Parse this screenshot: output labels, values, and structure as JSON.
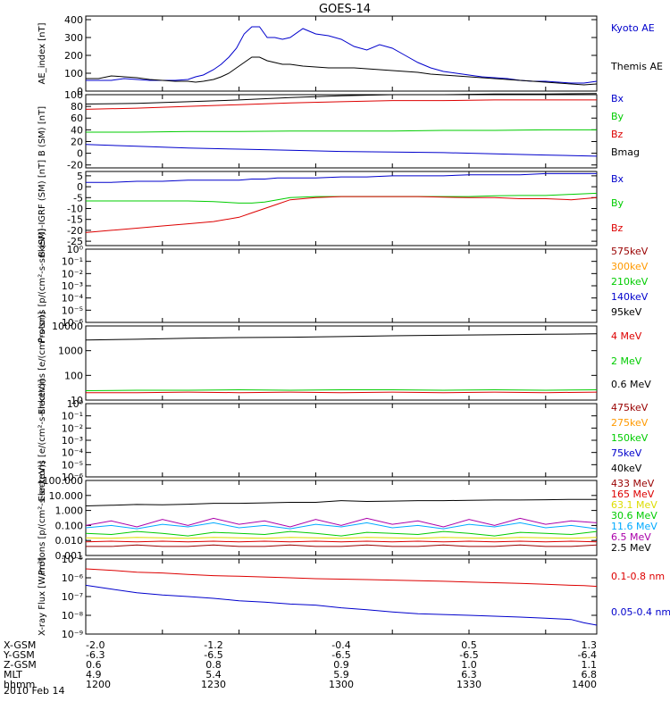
{
  "title": "GOES-14",
  "date_label": "2010 Feb 14",
  "colors": {
    "black": "#000000",
    "blue": "#0000cc",
    "red": "#dd0000",
    "green": "#00cc00",
    "orange": "#ff9900",
    "yellow": "#dddd00",
    "cyan": "#00aaff",
    "darkred": "#990000",
    "purple": "#aa00aa"
  },
  "x_table": {
    "rows": [
      {
        "label": "X-GSM",
        "values": [
          "-2.0",
          "-1.2",
          "-0.4",
          "0.5",
          "1.3"
        ]
      },
      {
        "label": "Y-GSM",
        "values": [
          "-6.3",
          "-6.5",
          "-6.5",
          "-6.5",
          "-6.4"
        ]
      },
      {
        "label": "Z-GSM",
        "values": [
          "0.6",
          "0.8",
          "0.9",
          "1.0",
          "1.1"
        ]
      },
      {
        "label": "MLT",
        "values": [
          "4.9",
          "5.4",
          "5.9",
          "6.3",
          "6.8"
        ]
      },
      {
        "label": "hhmm",
        "values": [
          "1200",
          "1230",
          "1300",
          "1330",
          "1400"
        ]
      }
    ]
  },
  "chart_data": [
    {
      "type": "line",
      "ylabel": "AE_index [nT]",
      "ylim": [
        0,
        420
      ],
      "ticks": [
        "0",
        "100",
        "200",
        "300",
        "400"
      ],
      "tick_vals": [
        0,
        100,
        200,
        300,
        400
      ],
      "log": false,
      "x": [
        1200,
        1205,
        1210,
        1215,
        1220,
        1225,
        1230,
        1235,
        1240,
        1243,
        1246,
        1250,
        1253,
        1256,
        1259,
        1262,
        1265,
        1268,
        1271,
        1274,
        1277,
        1280,
        1285,
        1290,
        1295,
        1300,
        1305,
        1310,
        1315,
        1320,
        1325,
        1330,
        1335,
        1340,
        1345,
        1350,
        1355,
        1360,
        1365,
        1370,
        1375,
        1380,
        1385,
        1390,
        1395,
        1400
      ],
      "series": [
        {
          "name": "Kyoto AE",
          "color": "blue",
          "values": [
            60,
            60,
            60,
            70,
            65,
            60,
            60,
            60,
            65,
            80,
            90,
            120,
            150,
            190,
            240,
            320,
            360,
            360,
            300,
            300,
            290,
            300,
            350,
            320,
            310,
            290,
            250,
            230,
            260,
            240,
            200,
            160,
            130,
            110,
            100,
            90,
            80,
            75,
            70,
            60,
            55,
            55,
            50,
            45,
            45,
            55
          ]
        },
        {
          "name": "Themis AE",
          "color": "black",
          "values": [
            70,
            70,
            85,
            80,
            75,
            65,
            60,
            55,
            55,
            50,
            55,
            65,
            80,
            100,
            130,
            160,
            190,
            190,
            170,
            160,
            150,
            150,
            140,
            135,
            130,
            130,
            130,
            125,
            120,
            115,
            110,
            105,
            95,
            90,
            85,
            80,
            75,
            70,
            65,
            60,
            55,
            50,
            45,
            40,
            35,
            40
          ]
        }
      ]
    },
    {
      "type": "line",
      "ylabel": "B (SM) [nT]",
      "ylim": [
        -25,
        100
      ],
      "ticks": [
        "-20",
        "0",
        "20",
        "40",
        "60",
        "80",
        "100"
      ],
      "tick_vals": [
        -20,
        0,
        20,
        40,
        60,
        80,
        100
      ],
      "log": false,
      "x": [
        1200,
        1220,
        1240,
        1260,
        1280,
        1300,
        1320,
        1340,
        1360,
        1380,
        1400
      ],
      "series": [
        {
          "name": "Bx",
          "color": "blue",
          "values": [
            15,
            12,
            9,
            7,
            5,
            3,
            2,
            1,
            -1,
            -3,
            -5
          ]
        },
        {
          "name": "By",
          "color": "green",
          "values": [
            36,
            36,
            37,
            37,
            38,
            38,
            38,
            39,
            39,
            40,
            40
          ]
        },
        {
          "name": "Bz",
          "color": "red",
          "values": [
            75,
            77,
            80,
            83,
            86,
            88,
            90,
            90,
            91,
            91,
            91
          ]
        },
        {
          "name": "Bmag",
          "color": "black",
          "values": [
            84,
            85,
            88,
            91,
            95,
            98,
            100,
            100,
            101,
            101,
            102
          ]
        }
      ]
    },
    {
      "type": "line",
      "ylabel": "B (SM)-IGRF (SM) [nT]",
      "ylim": [
        -27,
        7
      ],
      "ticks": [
        "-25",
        "-20",
        "-15",
        "-10",
        "-5",
        "0",
        "5"
      ],
      "tick_vals": [
        -25,
        -20,
        -15,
        -10,
        -5,
        0,
        5
      ],
      "log": false,
      "x": [
        1200,
        1210,
        1220,
        1230,
        1240,
        1250,
        1260,
        1265,
        1270,
        1275,
        1280,
        1290,
        1300,
        1310,
        1320,
        1330,
        1340,
        1350,
        1360,
        1370,
        1380,
        1390,
        1400
      ],
      "series": [
        {
          "name": "Bx",
          "color": "blue",
          "values": [
            2,
            2,
            2.5,
            2.5,
            3,
            3,
            3,
            3.5,
            3.5,
            4,
            4,
            4,
            4.5,
            4.5,
            5,
            5,
            5,
            5.5,
            5.5,
            5.5,
            6,
            6,
            6
          ]
        },
        {
          "name": "By",
          "color": "green",
          "values": [
            -6.5,
            -6.5,
            -6.5,
            -6.5,
            -6.5,
            -6.8,
            -7.5,
            -7.5,
            -7,
            -6,
            -5,
            -4.5,
            -4.5,
            -4.5,
            -4.5,
            -4.5,
            -4.5,
            -4.5,
            -4.2,
            -4,
            -4,
            -3.5,
            -3
          ]
        },
        {
          "name": "Bz",
          "color": "red",
          "values": [
            -21,
            -20,
            -19,
            -18,
            -17,
            -16,
            -14,
            -12,
            -10,
            -8,
            -6,
            -5,
            -4.5,
            -4.5,
            -4.5,
            -4.5,
            -4.8,
            -5,
            -5,
            -5.5,
            -5.5,
            -6,
            -5
          ]
        }
      ]
    },
    {
      "type": "line",
      "ylabel": "Protons [p/(cm²-s-sr-keV)]",
      "log": true,
      "ylim": [
        -6,
        0
      ],
      "ticks": [
        "10⁻⁶",
        "10⁻⁵",
        "10⁻⁴",
        "10⁻³",
        "10⁻²",
        "10⁻¹",
        "10⁰"
      ],
      "tick_vals": [
        -6,
        -5,
        -4,
        -3,
        -2,
        -1,
        0
      ],
      "x": [],
      "series": [],
      "legend": [
        {
          "name": "575keV",
          "color": "darkred"
        },
        {
          "name": "300keV",
          "color": "orange"
        },
        {
          "name": "210keV",
          "color": "green"
        },
        {
          "name": "140keV",
          "color": "blue"
        },
        {
          "name": "95keV",
          "color": "black"
        }
      ]
    },
    {
      "type": "line",
      "ylabel": "Electrons [e/(cm²-s-sr)]",
      "log": true,
      "ylim": [
        1,
        4
      ],
      "ticks": [
        "10",
        "100",
        "1000",
        "10000"
      ],
      "tick_vals": [
        1,
        2,
        3,
        4
      ],
      "x": [
        1200,
        1220,
        1240,
        1260,
        1280,
        1300,
        1320,
        1340,
        1360,
        1380,
        1400
      ],
      "series": [
        {
          "name": "4 MeV",
          "color": "red",
          "values": [
            20,
            20,
            21,
            20,
            21,
            20,
            21,
            20,
            21,
            20,
            21
          ]
        },
        {
          "name": "2 MeV",
          "color": "green",
          "values": [
            24,
            25,
            25,
            26,
            25,
            26,
            26,
            25,
            26,
            25,
            26
          ]
        },
        {
          "name": "0.6 MeV",
          "color": "black",
          "values": [
            2700,
            2900,
            3200,
            3400,
            3500,
            3700,
            4000,
            4200,
            4400,
            4600,
            4800
          ]
        }
      ]
    },
    {
      "type": "line",
      "ylabel": "Electrons [e/(cm²-s-sr-keV)]",
      "log": true,
      "ylim": [
        -6,
        0
      ],
      "ticks": [
        "10⁻⁶",
        "10⁻⁵",
        "10⁻⁴",
        "10⁻³",
        "10⁻²",
        "10⁻¹",
        "10⁰"
      ],
      "tick_vals": [
        -6,
        -5,
        -4,
        -3,
        -2,
        -1,
        0
      ],
      "x": [],
      "series": [],
      "legend": [
        {
          "name": "475keV",
          "color": "darkred"
        },
        {
          "name": "275keV",
          "color": "orange"
        },
        {
          "name": "150keV",
          "color": "green"
        },
        {
          "name": "75keV",
          "color": "blue"
        },
        {
          "name": "40keV",
          "color": "black"
        }
      ]
    },
    {
      "type": "line",
      "ylabel": "Protons [p/(cm²-s-sr-keV)]",
      "log": true,
      "ylim": [
        -3,
        2
      ],
      "ticks": [
        "0.001",
        "0.010",
        "0.100",
        "1.000",
        "10.000",
        "100.000"
      ],
      "tick_vals": [
        -3,
        -2,
        -1,
        0,
        1,
        2
      ],
      "x": [
        1200,
        1210,
        1220,
        1230,
        1240,
        1250,
        1260,
        1270,
        1280,
        1290,
        1300,
        1310,
        1320,
        1330,
        1340,
        1350,
        1360,
        1370,
        1380,
        1390,
        1400
      ],
      "series": [
        {
          "name": "433 MeV",
          "color": "darkred",
          "values": [
            0.004,
            0.004,
            0.005,
            0.004,
            0.004,
            0.005,
            0.004,
            0.004,
            0.005,
            0.004,
            0.004,
            0.005,
            0.004,
            0.004,
            0.005,
            0.004,
            0.004,
            0.005,
            0.004,
            0.004,
            0.005
          ]
        },
        {
          "name": "165 MeV",
          "color": "red",
          "values": [
            0.008,
            0.009,
            0.008,
            0.009,
            0.008,
            0.009,
            0.008,
            0.009,
            0.008,
            0.009,
            0.008,
            0.009,
            0.008,
            0.009,
            0.008,
            0.009,
            0.008,
            0.009,
            0.008,
            0.009,
            0.008
          ]
        },
        {
          "name": "63.1 MeV",
          "color": "yellow",
          "values": [
            0.015,
            0.014,
            0.016,
            0.015,
            0.014,
            0.016,
            0.015,
            0.014,
            0.016,
            0.015,
            0.014,
            0.016,
            0.015,
            0.014,
            0.016,
            0.015,
            0.014,
            0.016,
            0.015,
            0.014,
            0.016
          ]
        },
        {
          "name": "30.6 MeV",
          "color": "green",
          "values": [
            0.03,
            0.025,
            0.04,
            0.03,
            0.02,
            0.035,
            0.03,
            0.025,
            0.04,
            0.03,
            0.02,
            0.035,
            0.03,
            0.025,
            0.04,
            0.03,
            0.02,
            0.035,
            0.03,
            0.025,
            0.04
          ]
        },
        {
          "name": "11.6 MeV",
          "color": "cyan",
          "values": [
            0.07,
            0.1,
            0.06,
            0.12,
            0.08,
            0.15,
            0.07,
            0.1,
            0.06,
            0.12,
            0.08,
            0.15,
            0.07,
            0.1,
            0.06,
            0.12,
            0.08,
            0.15,
            0.07,
            0.1,
            0.06
          ]
        },
        {
          "name": "6.5 MeV",
          "color": "purple",
          "values": [
            0.1,
            0.2,
            0.08,
            0.25,
            0.1,
            0.3,
            0.12,
            0.2,
            0.08,
            0.25,
            0.1,
            0.3,
            0.12,
            0.2,
            0.08,
            0.25,
            0.1,
            0.3,
            0.12,
            0.2,
            0.15
          ]
        },
        {
          "name": "2.5 MeV",
          "color": "black",
          "values": [
            2,
            2.2,
            2.5,
            2.4,
            2.6,
            3,
            3,
            3.2,
            3.5,
            3.5,
            4.5,
            4,
            4.2,
            4.5,
            4.5,
            4.8,
            5,
            5,
            5.2,
            5.5,
            5.5
          ]
        }
      ]
    },
    {
      "type": "line",
      "ylabel": "X-ray Flux [W/m²]",
      "log": true,
      "ylim": [
        -9,
        -5
      ],
      "ticks": [
        "10⁻⁹",
        "10⁻⁸",
        "10⁻⁷",
        "10⁻⁶",
        "10⁻⁵"
      ],
      "tick_vals": [
        -9,
        -8,
        -7,
        -6,
        -5
      ],
      "x": [
        1200,
        1210,
        1220,
        1230,
        1240,
        1250,
        1260,
        1270,
        1280,
        1290,
        1300,
        1310,
        1320,
        1330,
        1340,
        1350,
        1360,
        1370,
        1380,
        1390,
        1395,
        1400
      ],
      "series": [
        {
          "name": "0.1-0.8 nm",
          "color": "red",
          "values": [
            3e-06,
            2.5e-06,
            2e-06,
            1.8e-06,
            1.5e-06,
            1.3e-06,
            1.2e-06,
            1.1e-06,
            1e-06,
            9e-07,
            8.5e-07,
            8e-07,
            7.5e-07,
            7e-07,
            6.5e-07,
            6e-07,
            5.5e-07,
            5e-07,
            4.5e-07,
            4e-07,
            3.8e-07,
            3.5e-07
          ]
        },
        {
          "name": "0.05-0.4 nm",
          "color": "blue",
          "values": [
            4e-07,
            2.5e-07,
            1.6e-07,
            1.2e-07,
            1e-07,
            8e-08,
            6e-08,
            5e-08,
            4e-08,
            3.5e-08,
            2.5e-08,
            2e-08,
            1.5e-08,
            1.2e-08,
            1.1e-08,
            1e-08,
            9e-09,
            8e-09,
            7e-09,
            6e-09,
            4e-09,
            3e-09
          ]
        }
      ]
    }
  ]
}
